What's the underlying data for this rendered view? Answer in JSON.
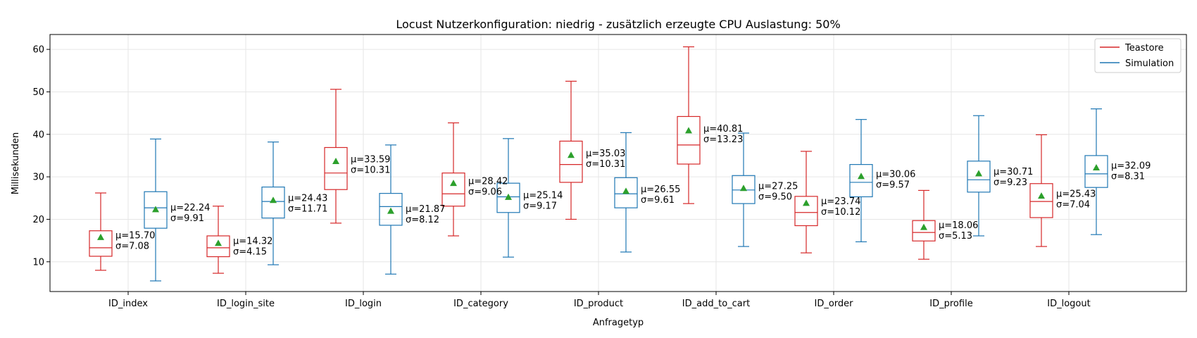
{
  "chart_data": {
    "type": "box",
    "title": "Locust Nutzerkonfiguration: niedrig - zusätzlich erzeugte CPU Auslastung: 50%",
    "xlabel": "Anfragetyp",
    "ylabel": "Millisekunden",
    "ylim": [
      3,
      63.5
    ],
    "yticks": [
      10,
      20,
      30,
      40,
      50,
      60
    ],
    "grid": true,
    "legend_position": "top-right",
    "categories": [
      "ID_index",
      "ID_login_site",
      "ID_login",
      "ID_category",
      "ID_product",
      "ID_add_to_cart",
      "ID_order",
      "ID_profile",
      "ID_logout"
    ],
    "series": [
      {
        "name": "Teastore",
        "color": "#d62728",
        "boxes": [
          {
            "whisker_low": 8.0,
            "q1": 11.3,
            "median": 13.3,
            "q3": 17.3,
            "whisker_high": 26.2,
            "mean": 15.7,
            "mean_label": "μ=15.70",
            "std_label": "σ=7.08"
          },
          {
            "whisker_low": 7.3,
            "q1": 11.2,
            "median": 13.3,
            "q3": 16.1,
            "whisker_high": 23.1,
            "mean": 14.32,
            "mean_label": "μ=14.32",
            "std_label": "σ=4.15"
          },
          {
            "whisker_low": 19.1,
            "q1": 27.0,
            "median": 30.9,
            "q3": 36.9,
            "whisker_high": 50.6,
            "mean": 33.59,
            "mean_label": "μ=33.59",
            "std_label": "σ=10.31"
          },
          {
            "whisker_low": 16.1,
            "q1": 23.1,
            "median": 26.0,
            "q3": 30.9,
            "whisker_high": 42.7,
            "mean": 28.42,
            "mean_label": "μ=28.42",
            "std_label": "σ=9.06"
          },
          {
            "whisker_low": 20.0,
            "q1": 28.7,
            "median": 32.9,
            "q3": 38.4,
            "whisker_high": 52.5,
            "mean": 35.03,
            "mean_label": "μ=35.03",
            "std_label": "σ=10.31"
          },
          {
            "whisker_low": 23.7,
            "q1": 33.0,
            "median": 37.5,
            "q3": 44.2,
            "whisker_high": 60.6,
            "mean": 40.81,
            "mean_label": "μ=40.81",
            "std_label": "σ=13.23"
          },
          {
            "whisker_low": 12.1,
            "q1": 18.5,
            "median": 21.6,
            "q3": 25.4,
            "whisker_high": 36.0,
            "mean": 23.74,
            "mean_label": "μ=23.74",
            "std_label": "σ=10.12"
          },
          {
            "whisker_low": 10.6,
            "q1": 14.9,
            "median": 16.9,
            "q3": 19.7,
            "whisker_high": 26.8,
            "mean": 18.06,
            "mean_label": "μ=18.06",
            "std_label": "σ=5.13"
          },
          {
            "whisker_low": 13.6,
            "q1": 20.4,
            "median": 24.2,
            "q3": 28.4,
            "whisker_high": 39.9,
            "mean": 25.43,
            "mean_label": "μ=25.43",
            "std_label": "σ=7.04"
          }
        ]
      },
      {
        "name": "Simulation",
        "color": "#1f77b4",
        "boxes": [
          {
            "whisker_low": 5.5,
            "q1": 17.9,
            "median": 22.7,
            "q3": 26.5,
            "whisker_high": 38.9,
            "mean": 22.24,
            "mean_label": "μ=22.24",
            "std_label": "σ=9.91"
          },
          {
            "whisker_low": 9.3,
            "q1": 20.3,
            "median": 24.2,
            "q3": 27.6,
            "whisker_high": 38.2,
            "mean": 24.43,
            "mean_label": "μ=24.43",
            "std_label": "σ=11.71"
          },
          {
            "whisker_low": 7.1,
            "q1": 18.6,
            "median": 23.0,
            "q3": 26.1,
            "whisker_high": 37.5,
            "mean": 21.87,
            "mean_label": "μ=21.87",
            "std_label": "σ=8.12"
          },
          {
            "whisker_low": 11.1,
            "q1": 21.6,
            "median": 25.3,
            "q3": 28.5,
            "whisker_high": 39.0,
            "mean": 25.14,
            "mean_label": "μ=25.14",
            "std_label": "σ=9.17"
          },
          {
            "whisker_low": 12.3,
            "q1": 22.7,
            "median": 26.0,
            "q3": 29.8,
            "whisker_high": 40.4,
            "mean": 26.55,
            "mean_label": "μ=26.55",
            "std_label": "σ=9.61"
          },
          {
            "whisker_low": 13.6,
            "q1": 23.7,
            "median": 26.9,
            "q3": 30.3,
            "whisker_high": 40.3,
            "mean": 27.25,
            "mean_label": "μ=27.25",
            "std_label": "σ=9.50"
          },
          {
            "whisker_low": 14.7,
            "q1": 25.3,
            "median": 28.7,
            "q3": 32.9,
            "whisker_high": 43.5,
            "mean": 30.06,
            "mean_label": "μ=30.06",
            "std_label": "σ=9.57"
          },
          {
            "whisker_low": 16.1,
            "q1": 26.4,
            "median": 29.3,
            "q3": 33.7,
            "whisker_high": 44.4,
            "mean": 30.71,
            "mean_label": "μ=30.71",
            "std_label": "σ=9.23"
          },
          {
            "whisker_low": 16.4,
            "q1": 27.5,
            "median": 30.7,
            "q3": 35.0,
            "whisker_high": 46.0,
            "mean": 32.09,
            "mean_label": "μ=32.09",
            "std_label": "σ=8.31"
          }
        ]
      }
    ],
    "mean_marker_color": "#2ca02c"
  }
}
